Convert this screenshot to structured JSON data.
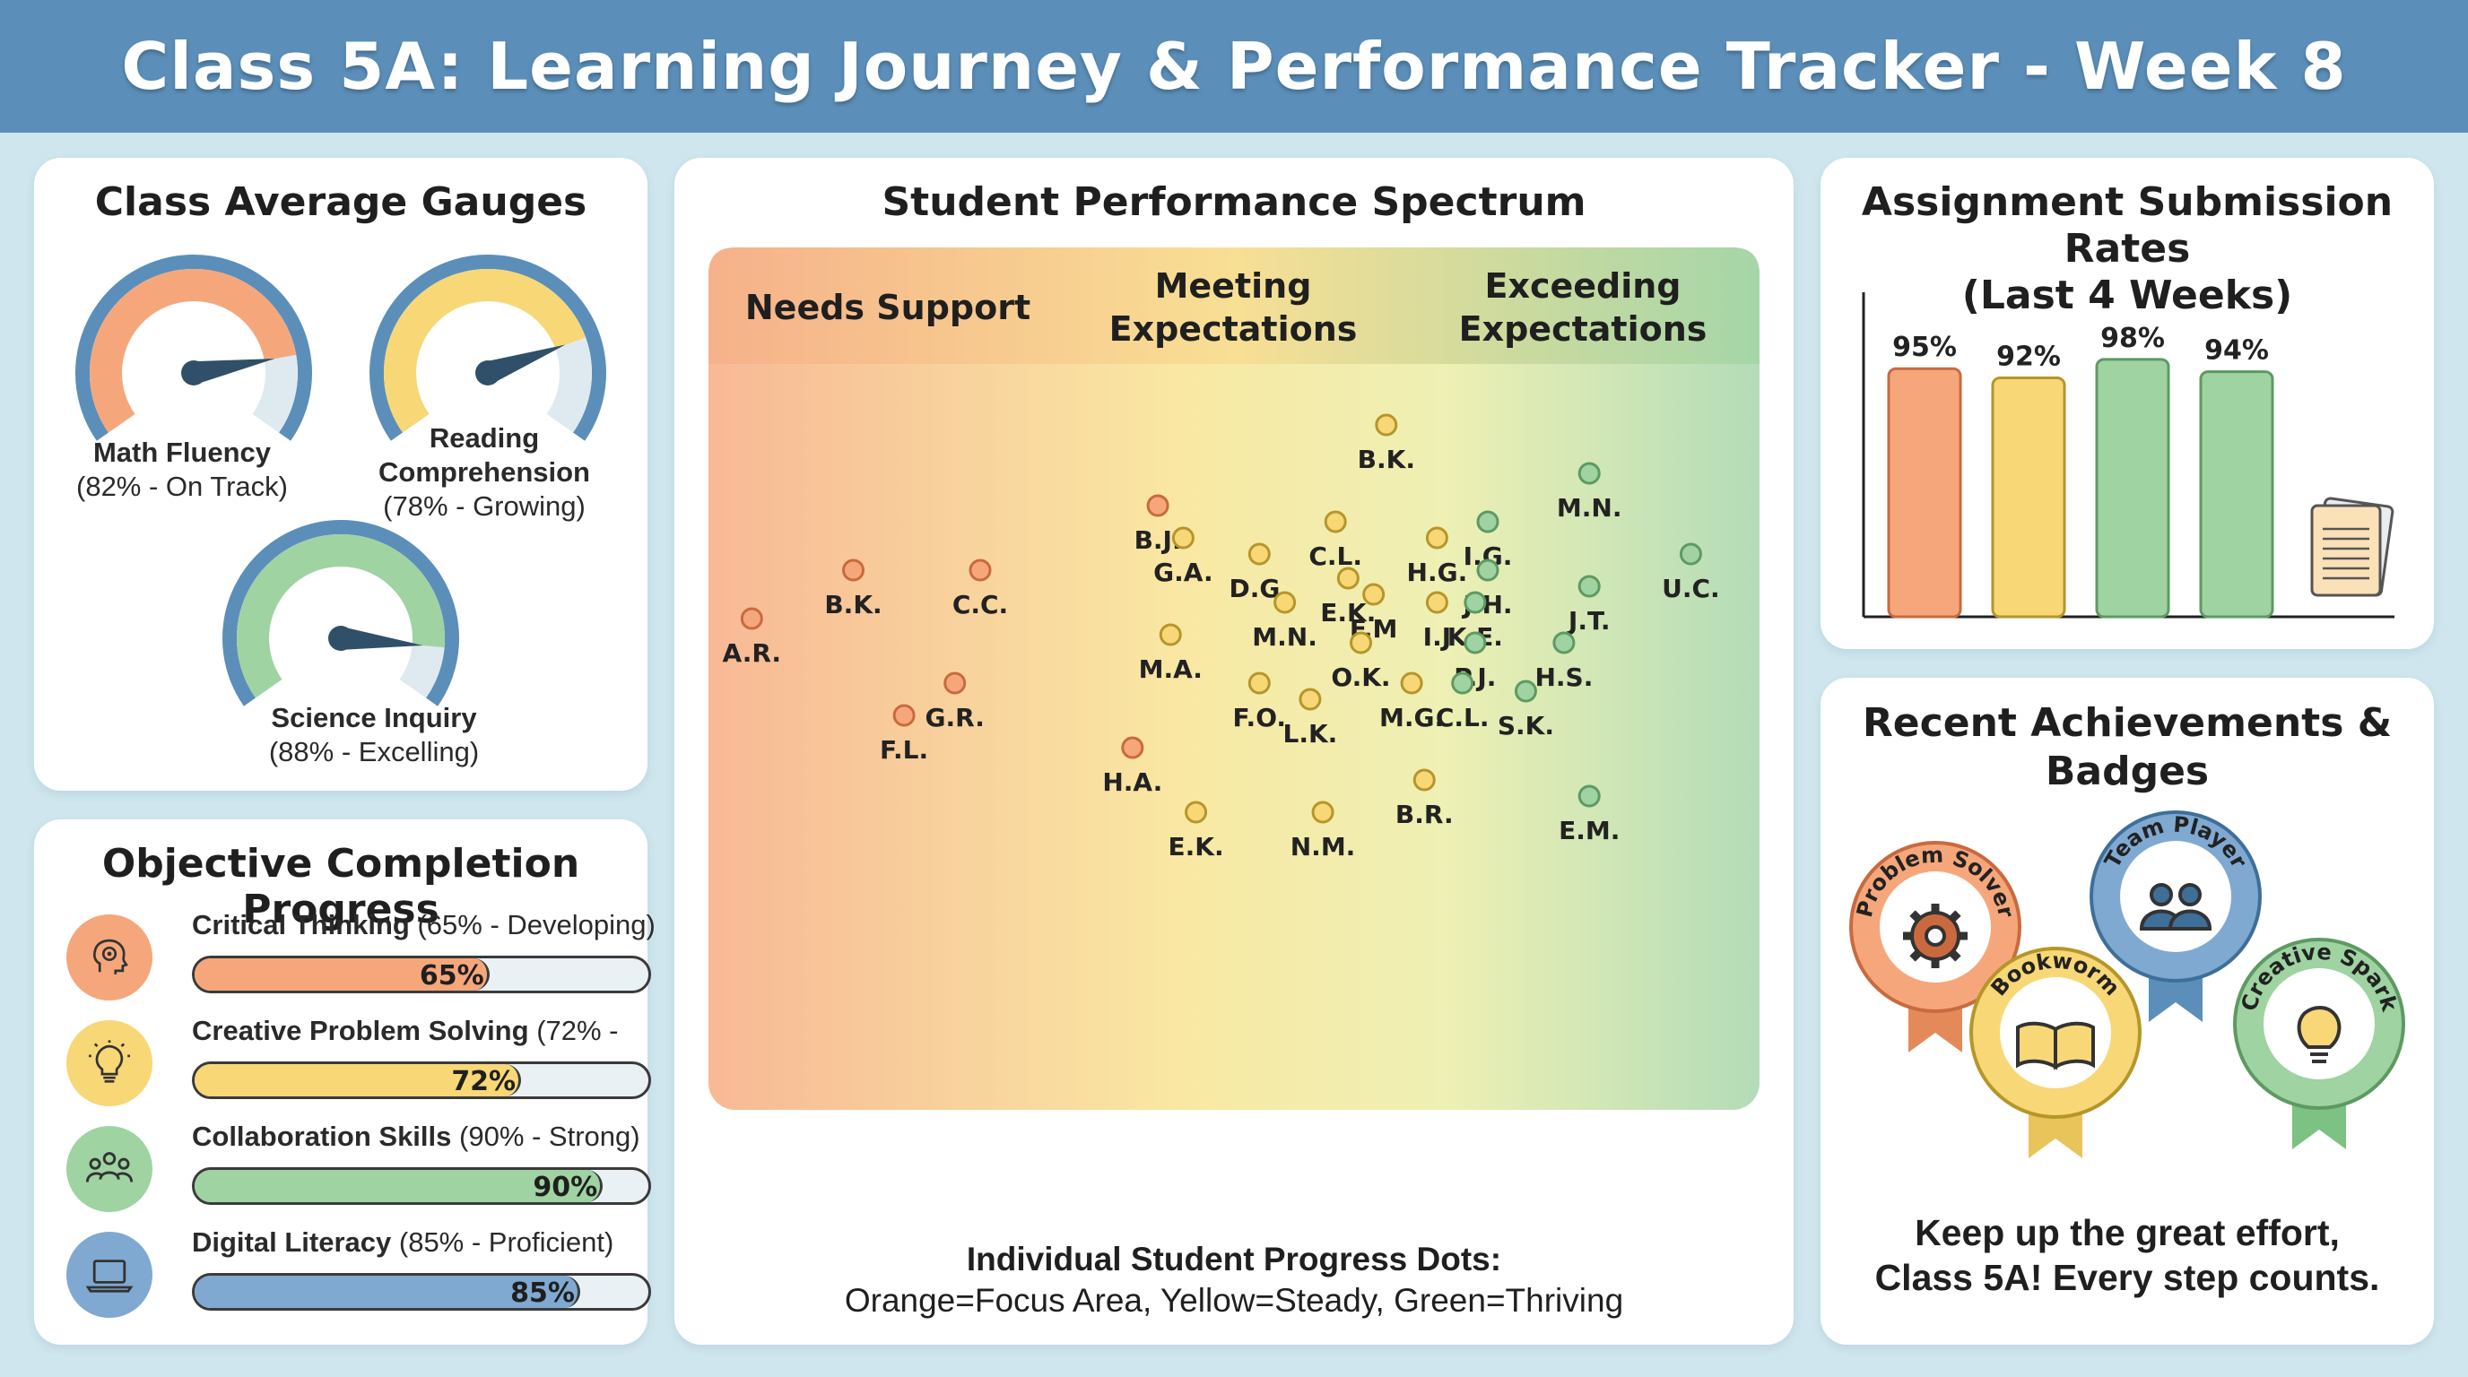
{
  "title": "Class 5A: Learning Journey & Performance Tracker - Week 8",
  "gauges": {
    "title": "Class Average Gauges",
    "items": [
      {
        "name": "Math Fluency",
        "detail": "(82% - On Track)",
        "value": 82,
        "color": "#f5a77b"
      },
      {
        "name": "Reading Comprehension",
        "name_line1": "Reading",
        "name_line2": "Comprehension",
        "detail": "(78% - Growing)",
        "value": 78,
        "color": "#f8d776"
      },
      {
        "name": "Science Inquiry",
        "detail": "(88% - Excelling)",
        "value": 88,
        "color": "#9fd3a2"
      }
    ],
    "ring_color": "#5b8fb9"
  },
  "objectives": {
    "title": "Objective Completion Progress",
    "items": [
      {
        "name": "Critical Thinking",
        "detail": "(65% - Developing)",
        "value": 65,
        "pct_label": "65%",
        "color": "#f5a77b",
        "icon": "brain-head-icon"
      },
      {
        "name": "Creative Problem Solving",
        "detail": "(72% -",
        "value": 72,
        "pct_label": "72%",
        "color": "#f8d776",
        "icon": "lightbulb-icon"
      },
      {
        "name": "Collaboration Skills",
        "detail": "(90% - Strong)",
        "value": 90,
        "pct_label": "90%",
        "color": "#9fd3a2",
        "icon": "people-group-icon"
      },
      {
        "name": "Digital Literacy",
        "detail": "(85% - Proficient)",
        "value": 85,
        "pct_label": "85%",
        "color": "#7fa9d1",
        "icon": "laptop-icon"
      }
    ]
  },
  "spectrum": {
    "title": "Student Performance Spectrum",
    "zones": [
      "Needs Support",
      "Meeting Expectations",
      "Exceeding Expectations"
    ],
    "zones_split": [
      [
        "Needs Support"
      ],
      [
        "Meeting",
        "Expectations"
      ],
      [
        "Exceeding",
        "Expectations"
      ]
    ],
    "caption_line1": "Individual Student Progress Dots:",
    "caption_line2": "Orange=Focus Area, Yellow=Steady, Green=Thriving",
    "colors": {
      "orange": "#f5a77b",
      "yellow": "#f8d776",
      "green": "#9fd3a2"
    }
  },
  "submissions": {
    "title_line1": "Assignment Submission Rates",
    "title_line2": "(Last 4 Weeks)",
    "icon": "documents-icon"
  },
  "achievements": {
    "title_line1": "Recent Achievements &",
    "title_line2": "Badges",
    "badges": [
      {
        "label": "Problem Solver",
        "color": "#f5a77b",
        "icon": "gear-icon"
      },
      {
        "label": "Team Player",
        "color": "#7fa9d1",
        "icon": "people-icon"
      },
      {
        "label": "Bookworm",
        "color": "#f8d776",
        "icon": "book-icon"
      },
      {
        "label": "Creative Spark",
        "color": "#9fd3a2",
        "icon": "lightbulb-icon"
      }
    ],
    "message_line1": "Keep up the great effort,",
    "message_line2": "Class 5A! Every step counts."
  },
  "chart_data": [
    {
      "type": "bar",
      "title": "Assignment Submission Rates (Last 4 Weeks)",
      "categories": [
        "",
        "",
        "",
        ""
      ],
      "values": [
        95,
        92,
        98,
        94
      ],
      "value_labels": [
        "95%",
        "92%",
        "98%",
        "94%"
      ],
      "colors": [
        "#f5a77b",
        "#f8d776",
        "#9fd3a2",
        "#9fd3a2"
      ],
      "ylim": [
        0,
        100
      ]
    },
    {
      "type": "scatter",
      "title": "Student Performance Spectrum",
      "xlabel": "",
      "ylabel": "",
      "points": [
        {
          "label": "A.R.",
          "x": 1,
          "y": 2,
          "c": "orange"
        },
        {
          "label": "B.K.",
          "x": 5,
          "y": 5,
          "c": "orange"
        },
        {
          "label": "F.L.",
          "x": 7,
          "y": -4,
          "c": "orange"
        },
        {
          "label": "C.C.",
          "x": 10,
          "y": 5,
          "c": "orange"
        },
        {
          "label": "G.R.",
          "x": 9,
          "y": -2,
          "c": "orange"
        },
        {
          "label": "B.J.",
          "x": 17,
          "y": 9,
          "c": "orange"
        },
        {
          "label": "G.A.",
          "x": 18,
          "y": 7,
          "c": "yellow"
        },
        {
          "label": "H.A.",
          "x": 16,
          "y": -6,
          "c": "orange"
        },
        {
          "label": "M.A.",
          "x": 17.5,
          "y": 1,
          "c": "yellow"
        },
        {
          "label": "E.K.",
          "x": 18.5,
          "y": -10,
          "c": "yellow"
        },
        {
          "label": "F.O.",
          "x": 21,
          "y": -2,
          "c": "yellow"
        },
        {
          "label": "D.G.",
          "x": 21,
          "y": 6,
          "c": "yellow"
        },
        {
          "label": "C.L.",
          "x": 24,
          "y": 8,
          "c": "yellow"
        },
        {
          "label": "M.N.",
          "x": 22,
          "y": 3,
          "c": "yellow"
        },
        {
          "label": "L.K.",
          "x": 23,
          "y": -3,
          "c": "yellow"
        },
        {
          "label": "N.M.",
          "x": 23.5,
          "y": -10,
          "c": "yellow"
        },
        {
          "label": "B.K.",
          "x": 26,
          "y": 14,
          "c": "yellow"
        },
        {
          "label": "E.K.",
          "x": 24.5,
          "y": 4.5,
          "c": "yellow"
        },
        {
          "label": "F.M",
          "x": 25.5,
          "y": 3.5,
          "c": "yellow"
        },
        {
          "label": "H.G.",
          "x": 28,
          "y": 7,
          "c": "yellow"
        },
        {
          "label": "O.K.",
          "x": 25,
          "y": 0.5,
          "c": "yellow"
        },
        {
          "label": "M.G.",
          "x": 27,
          "y": -2,
          "c": "yellow"
        },
        {
          "label": "B.R.",
          "x": 27.5,
          "y": -8,
          "c": "yellow"
        },
        {
          "label": "I.J",
          "x": 28,
          "y": 3,
          "c": "yellow"
        },
        {
          "label": "I.G.",
          "x": 30,
          "y": 8,
          "c": "green"
        },
        {
          "label": "J.H.",
          "x": 30,
          "y": 5,
          "c": "green"
        },
        {
          "label": "K.E.",
          "x": 29.5,
          "y": 3,
          "c": "green"
        },
        {
          "label": "P.J.",
          "x": 29.5,
          "y": 0.5,
          "c": "green"
        },
        {
          "label": "C.L.",
          "x": 29,
          "y": -2,
          "c": "green"
        },
        {
          "label": "M.N.",
          "x": 34,
          "y": 11,
          "c": "green"
        },
        {
          "label": "J.T.",
          "x": 34,
          "y": 4,
          "c": "green"
        },
        {
          "label": "H.S.",
          "x": 33,
          "y": 0.5,
          "c": "green"
        },
        {
          "label": "S.K.",
          "x": 31.5,
          "y": -2.5,
          "c": "green"
        },
        {
          "label": "E.M.",
          "x": 34,
          "y": -9,
          "c": "green"
        },
        {
          "label": "U.C.",
          "x": 38,
          "y": 6,
          "c": "green"
        }
      ]
    }
  ]
}
